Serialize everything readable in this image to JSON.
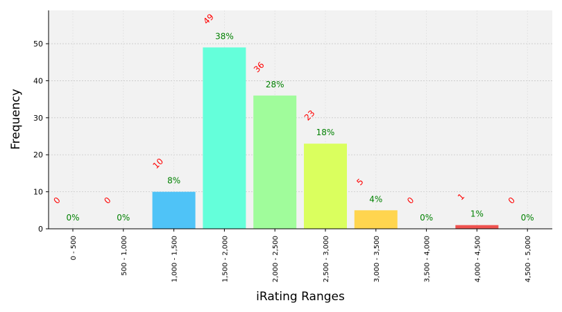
{
  "chart_data": {
    "type": "bar",
    "xlabel": "iRating Ranges",
    "ylabel": "Frequency",
    "ylim": [
      0,
      59
    ],
    "yticks": [
      0,
      10,
      20,
      30,
      40,
      50
    ],
    "grid": true,
    "categories": [
      "0 - 500",
      "500 - 1,000",
      "1,000 - 1,500",
      "1,500 - 2,000",
      "2,000 - 2,500",
      "2,500 - 3,000",
      "3,000 - 3,500",
      "3,500 - 4,000",
      "4,000 - 4,500",
      "4,500 - 5,000"
    ],
    "values": [
      0,
      0,
      10,
      49,
      36,
      23,
      5,
      0,
      1,
      0
    ],
    "count_labels": [
      "0",
      "0",
      "10",
      "49",
      "36",
      "23",
      "5",
      "0",
      "1",
      "0"
    ],
    "percent_labels": [
      "0%",
      "0%",
      "8%",
      "38%",
      "28%",
      "18%",
      "4%",
      "0%",
      "1%",
      "0%"
    ],
    "colors": [
      "#4a90e2",
      "#4aa8f0",
      "#4fc3f7",
      "#64ffda",
      "#a0fc9b",
      "#daff5e",
      "#ffd54f",
      "#ffab40",
      "#ef5350",
      "#d32f2f"
    ]
  }
}
